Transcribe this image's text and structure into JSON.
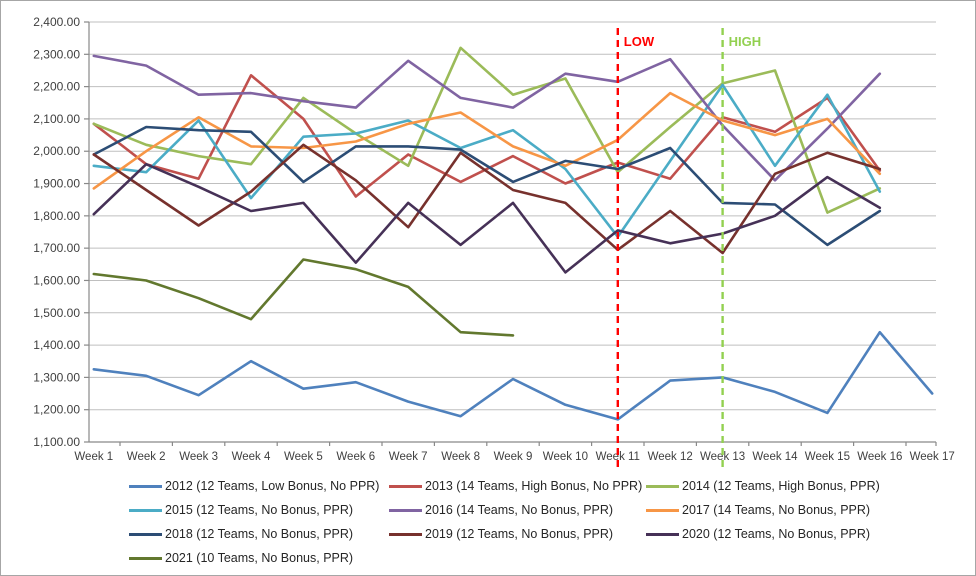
{
  "chart_data": {
    "type": "line",
    "categories": [
      "Week 1",
      "Week 2",
      "Week 3",
      "Week 4",
      "Week 5",
      "Week 6",
      "Week 7",
      "Week 8",
      "Week 9",
      "Week 10",
      "Week 11",
      "Week 12",
      "Week 13",
      "Week 14",
      "Week 15",
      "Week 16",
      "Week 17"
    ],
    "ylim": [
      1100,
      2400
    ],
    "y_tick_step": 100,
    "y_ticks": [
      {
        "v": 2400,
        "label": "2,400.00"
      },
      {
        "v": 2300,
        "label": "2,300.00"
      },
      {
        "v": 2200,
        "label": "2,200.00"
      },
      {
        "v": 2100,
        "label": "2,100.00"
      },
      {
        "v": 2000,
        "label": "2,000.00"
      },
      {
        "v": 1900,
        "label": "1,900.00"
      },
      {
        "v": 1800,
        "label": "1,800.00"
      },
      {
        "v": 1700,
        "label": "1,700.00"
      },
      {
        "v": 1600,
        "label": "1,600.00"
      },
      {
        "v": 1500,
        "label": "1,500.00"
      },
      {
        "v": 1400,
        "label": "1,400.00"
      },
      {
        "v": 1300,
        "label": "1,300.00"
      },
      {
        "v": 1200,
        "label": "1,200.00"
      },
      {
        "v": 1100,
        "label": "1,100.00"
      }
    ],
    "grid": "horizontal",
    "legend_position": "bottom",
    "annotations": [
      {
        "label": "LOW",
        "category": "Week 11",
        "color": "#FF0000",
        "style": "dashed-vertical"
      },
      {
        "label": "HIGH",
        "category": "Week 13",
        "color": "#92D050",
        "style": "dashed-vertical"
      }
    ],
    "series": [
      {
        "name": "2012 (12 Teams, Low Bonus, No PPR)",
        "color": "#4F81BD",
        "values": [
          1325,
          1305,
          1245,
          1350,
          1265,
          1285,
          1225,
          1180,
          1295,
          1215,
          1170,
          1290,
          1300,
          1255,
          1190,
          1440,
          1250
        ]
      },
      {
        "name": "2013 (14 Teams, High Bonus, No PPR)",
        "color": "#C0504D",
        "values": [
          2085,
          1960,
          1915,
          2235,
          2100,
          1860,
          1990,
          1905,
          1985,
          1900,
          1965,
          1915,
          2105,
          2060,
          2165,
          1940
        ]
      },
      {
        "name": "2014 (12 Teams, High Bonus, PPR)",
        "color": "#9BBB59",
        "values": [
          2085,
          2020,
          1985,
          1960,
          2165,
          2055,
          1955,
          2320,
          2175,
          2225,
          1935,
          2075,
          2210,
          2250,
          1810,
          1885
        ]
      },
      {
        "name": "2015 (12 Teams, No Bonus, PPR)",
        "color": "#4BACC6",
        "values": [
          1955,
          1935,
          2095,
          1855,
          2045,
          2055,
          2095,
          2010,
          2065,
          1945,
          1735,
          1970,
          2205,
          1955,
          2175,
          1875
        ]
      },
      {
        "name": "2016 (14 Teams, No Bonus, PPR)",
        "color": "#8064A2",
        "values": [
          2295,
          2265,
          2175,
          2180,
          2155,
          2135,
          2280,
          2165,
          2135,
          2240,
          2215,
          2285,
          2080,
          1910,
          2070,
          2240
        ]
      },
      {
        "name": "2017 (14 Teams, No Bonus, PPR)",
        "color": "#F79646",
        "values": [
          1885,
          2000,
          2105,
          2015,
          2010,
          2030,
          2085,
          2120,
          2015,
          1955,
          2035,
          2180,
          2095,
          2050,
          2100,
          1930
        ]
      },
      {
        "name": "2018 (12 Teams, No Bonus, PPR)",
        "color": "#2C4D75",
        "values": [
          1990,
          2075,
          2065,
          2060,
          1905,
          2015,
          2015,
          2005,
          1905,
          1970,
          1945,
          2010,
          1840,
          1835,
          1710,
          1815
        ]
      },
      {
        "name": "2019 (12 Teams, No Bonus, PPR)",
        "color": "#77312D",
        "values": [
          1990,
          1880,
          1770,
          1875,
          2020,
          1910,
          1765,
          1995,
          1880,
          1840,
          1695,
          1815,
          1685,
          1930,
          1995,
          1945
        ]
      },
      {
        "name": "2020 (12 Teams, No Bonus, PPR)",
        "color": "#463157",
        "values": [
          1805,
          1960,
          1890,
          1815,
          1840,
          1655,
          1840,
          1710,
          1840,
          1625,
          1755,
          1715,
          1745,
          1800,
          1920,
          1825
        ]
      },
      {
        "name": "2021 (10 Teams, No Bonus, PPR)",
        "color": "#62782E",
        "values": [
          1620,
          1600,
          1545,
          1480,
          1665,
          1635,
          1580,
          1440,
          1430
        ]
      }
    ],
    "axis_color": "#898989",
    "grid_color": "#bfbfbf",
    "label_color": "#404040"
  }
}
